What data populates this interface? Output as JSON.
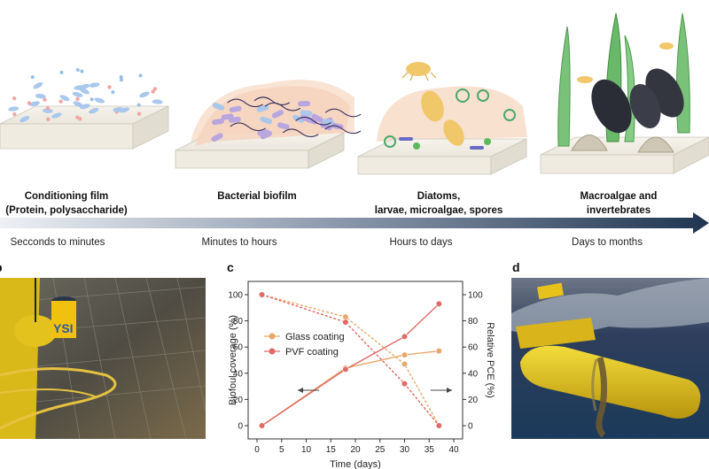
{
  "stages": [
    {
      "title_line1": "Conditioning film",
      "title_line2": "(Protein, polysaccharide)",
      "time": "Secconds to minutes"
    },
    {
      "title_line1": "Bacterial biofilm",
      "title_line2": "",
      "time": "Minutes to hours"
    },
    {
      "title_line1": "Diatoms,",
      "title_line2": "larvae, microalgae, spores",
      "time": "Hours to days"
    },
    {
      "title_line1": "Macroalgae and",
      "title_line2": "invertebrates",
      "time": "Days to months"
    }
  ],
  "panels": {
    "b": "b",
    "c": "c",
    "d": "d"
  },
  "colors": {
    "glass": "#e8a868",
    "pvf": "#e06a66",
    "arrow_start": "#e4e8ee",
    "arrow_end": "#1f3550"
  },
  "chart_data": {
    "type": "line",
    "xlabel": "Time (days)",
    "ylabel_left": "Biofoul coverage (%)",
    "ylabel_right": "Relative PCE (%)",
    "xlim": [
      0,
      40
    ],
    "ylim": [
      0,
      100
    ],
    "xticks": [
      "0",
      "5",
      "10",
      "15",
      "20",
      "25",
      "30",
      "35",
      "40"
    ],
    "yticks": [
      "0",
      "20",
      "40",
      "60",
      "80",
      "100"
    ],
    "series": [
      {
        "name": "Glass coating",
        "axis": "left",
        "style": "solid",
        "x": [
          1,
          18,
          30,
          37
        ],
        "y": [
          0,
          44,
          54,
          57
        ]
      },
      {
        "name": "PVF coating",
        "axis": "left",
        "style": "solid",
        "x": [
          1,
          18,
          30,
          37
        ],
        "y": [
          0,
          43,
          68,
          93
        ]
      },
      {
        "name": "Glass coating",
        "axis": "right",
        "style": "dashed",
        "x": [
          1,
          18,
          30,
          37
        ],
        "y": [
          100,
          83,
          47,
          0
        ]
      },
      {
        "name": "PVF coating",
        "axis": "right",
        "style": "dashed",
        "x": [
          1,
          18,
          30,
          37
        ],
        "y": [
          100,
          79,
          32,
          0
        ]
      }
    ],
    "legend": [
      "Glass coating",
      "PVF coating"
    ],
    "legend_position": "upper-left"
  }
}
